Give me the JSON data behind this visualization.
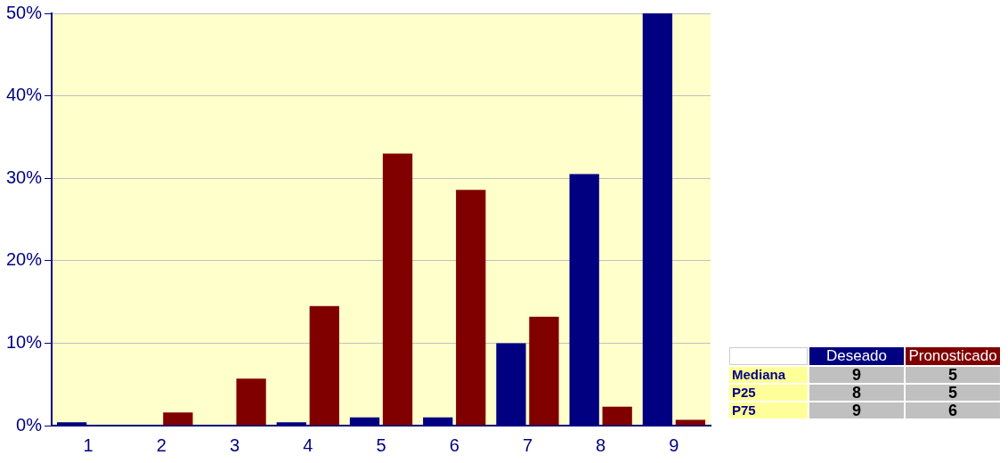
{
  "chart_data": {
    "type": "bar",
    "categories": [
      "1",
      "2",
      "3",
      "4",
      "5",
      "6",
      "7",
      "8",
      "9"
    ],
    "series": [
      {
        "name": "Deseado",
        "color": "#000080",
        "values": [
          0.4,
          0,
          0,
          0.4,
          1.0,
          1.0,
          10.0,
          30.5,
          50
        ]
      },
      {
        "name": "Pronosticado",
        "color": "#800000",
        "values": [
          0,
          1.6,
          5.7,
          14.5,
          33.0,
          28.6,
          13.2,
          2.3,
          0.7
        ]
      }
    ],
    "ylim": [
      0,
      50
    ],
    "yticks": [
      {
        "value": 0,
        "label": "0%"
      },
      {
        "value": 10,
        "label": "10%"
      },
      {
        "value": 20,
        "label": "20%"
      },
      {
        "value": 30,
        "label": "30%"
      },
      {
        "value": 40,
        "label": "40%"
      },
      {
        "value": 50,
        "label": "50%"
      }
    ],
    "grid": "y",
    "legend": "bottom right",
    "annotations": [
      "Mediana",
      "9",
      "5",
      "P25",
      "8",
      "5",
      "P75",
      "9",
      "6"
    ]
  }
}
